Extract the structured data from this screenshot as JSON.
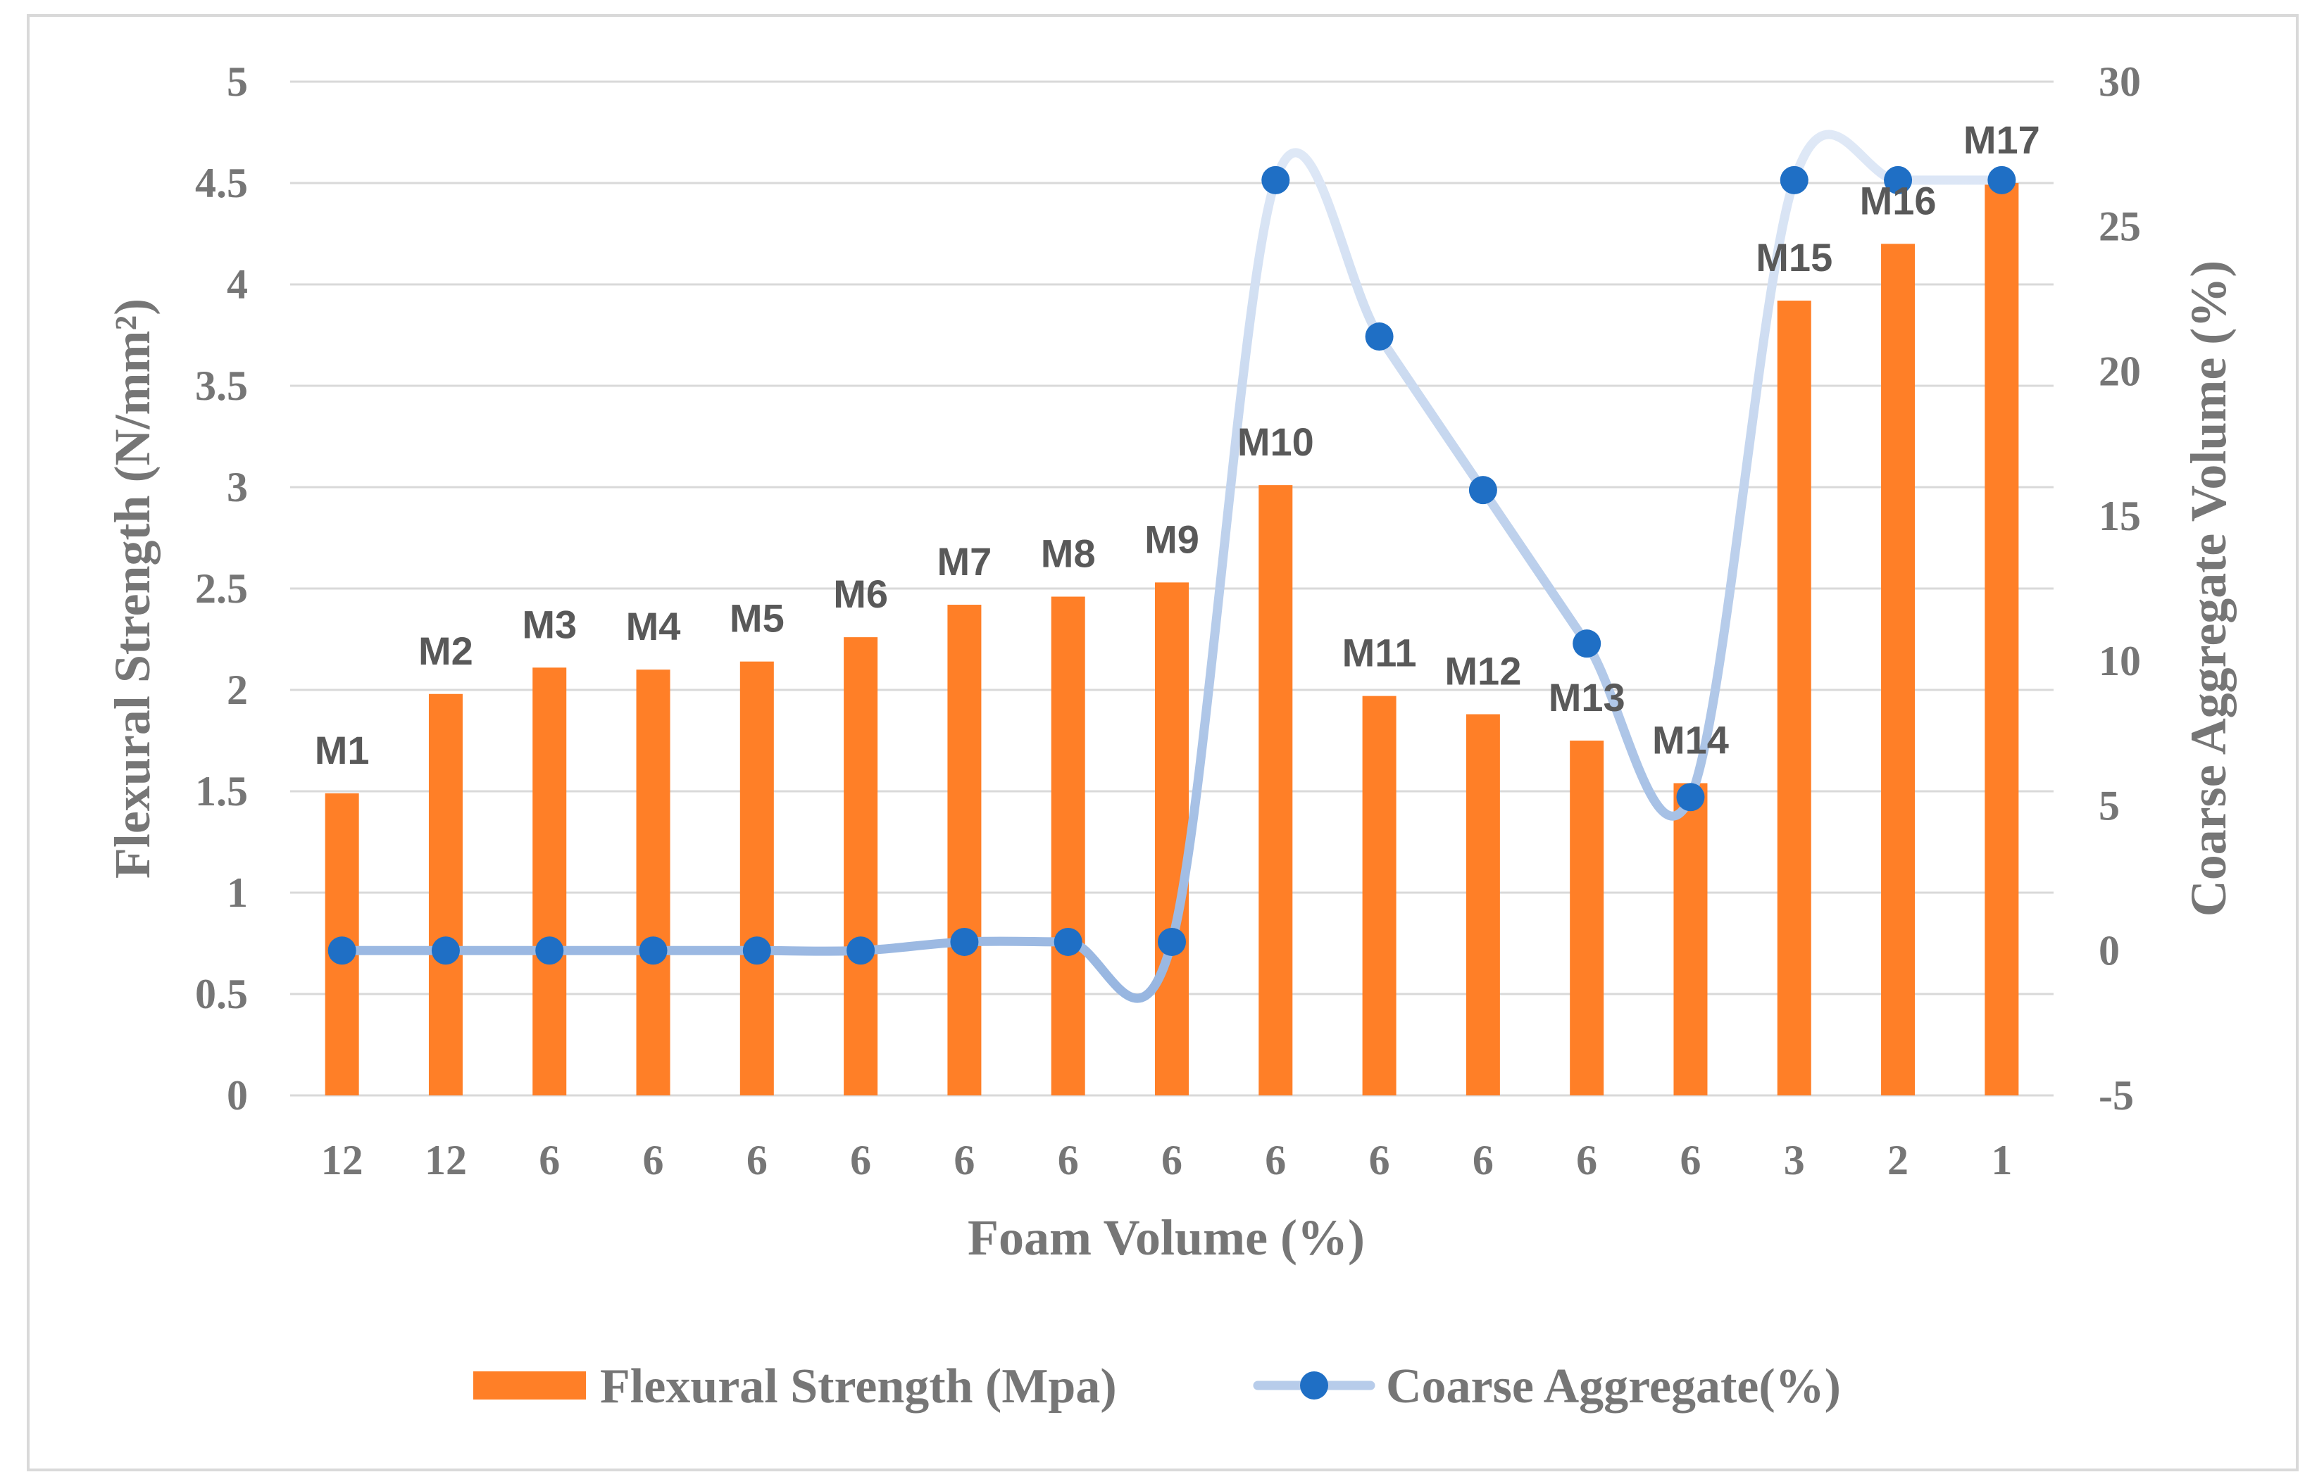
{
  "chart_data": {
    "type": "bar",
    "title": "",
    "categories": [
      "M1",
      "M2",
      "M3",
      "M4",
      "M5",
      "M6",
      "M7",
      "M8",
      "M9",
      "M10",
      "M11",
      "M12",
      "M13",
      "M14",
      "M15",
      "M16",
      "M17"
    ],
    "x_tick_labels": [
      "12",
      "12",
      "6",
      "6",
      "6",
      "6",
      "6",
      "6",
      "6",
      "6",
      "6",
      "6",
      "6",
      "6",
      "3",
      "2",
      "1"
    ],
    "xlabel": "Foam Volume (%)",
    "ylabel": "Flexural Strength (N/mm²)",
    "y2label": "Coarse Aggregate Volume (%)",
    "ylim": [
      0,
      5
    ],
    "y_ticks": [
      "0",
      "0.5",
      "1",
      "1.5",
      "2",
      "2.5",
      "3",
      "3.5",
      "4",
      "4.5",
      "5"
    ],
    "y2lim": [
      -5,
      30
    ],
    "y2_ticks": [
      "-5",
      "0",
      "5",
      "10",
      "15",
      "20",
      "25",
      "30"
    ],
    "grid": true,
    "legend_position": "bottom",
    "series": [
      {
        "name": "Flexural Strength (Mpa)",
        "type": "bar",
        "axis": "left",
        "color": "#FF7F27",
        "values": [
          1.49,
          1.98,
          2.11,
          2.1,
          2.14,
          2.26,
          2.42,
          2.46,
          2.53,
          3.01,
          1.97,
          1.88,
          1.75,
          1.54,
          3.92,
          4.2,
          4.5
        ]
      },
      {
        "name": "Coarse Aggregate(%)",
        "type": "line",
        "axis": "right",
        "smooth": true,
        "line_color": "#B7CCEA",
        "marker_color": "#1F6FC5",
        "values": [
          0,
          0,
          0,
          0,
          0,
          0,
          0.3,
          0.3,
          0.3,
          26.6,
          21.2,
          15.9,
          10.6,
          5.3,
          26.6,
          26.6,
          26.6
        ]
      }
    ]
  }
}
